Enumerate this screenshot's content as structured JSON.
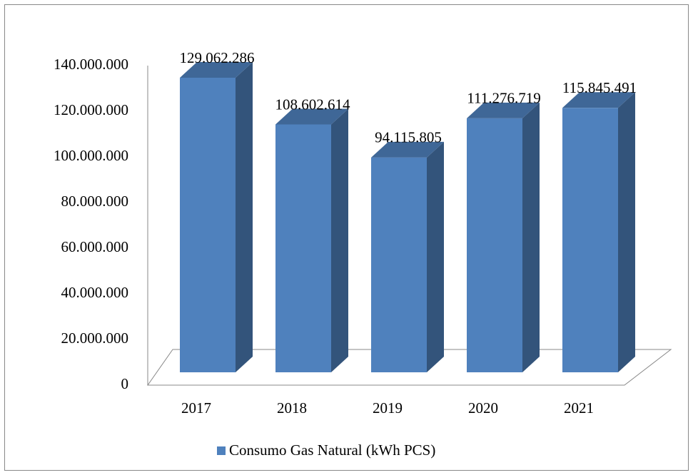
{
  "chart_data": {
    "type": "bar3d",
    "categories": [
      "2017",
      "2018",
      "2019",
      "2020",
      "2021"
    ],
    "series": [
      {
        "name": "Consumo Gas Natural (kWh PCS)",
        "color": "#4f81bd",
        "values": [
          129062286,
          108602614,
          94115805,
          111276719,
          115845491
        ],
        "value_labels": [
          "129.062.286",
          "108.602.614",
          "94.115.805",
          "111.276.719",
          "115.845.491"
        ]
      }
    ],
    "ylim": [
      0,
      140000000
    ],
    "yticks": [
      0,
      {
        "value": 20000000,
        "label": "20.000.000"
      },
      {
        "value": 40000000,
        "label": "40.000.000"
      },
      {
        "value": 60000000,
        "label": "60.000.000"
      },
      {
        "value": 80000000,
        "label": "80.000.000"
      },
      {
        "value": 100000000,
        "label": "100.000.000"
      },
      {
        "value": 120000000,
        "label": "120.000.000"
      },
      {
        "value": 140000000,
        "label": "140.000.000"
      }
    ],
    "legend": "bottom"
  }
}
